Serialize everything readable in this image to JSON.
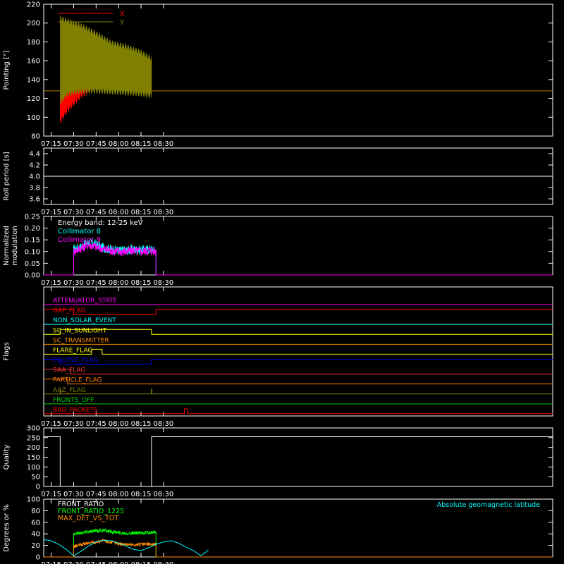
{
  "colors": {
    "frame": "#ffffff",
    "x": "#ff0000",
    "y": "#808000",
    "white": "#ffffff",
    "cyan": "#00ffff",
    "magenta": "#ff00ff",
    "green": "#00ff00",
    "orange": "#ff8c00"
  },
  "time_axis": {
    "range_min": [
      430,
      770
    ],
    "ticks_min": [
      435,
      450,
      465,
      480,
      495,
      510
    ],
    "tick_labels": [
      "07:15",
      "07:30",
      "07:45",
      "08:00",
      "08:15",
      "08:30"
    ]
  },
  "chart_data": [
    {
      "id": "pointing",
      "type": "line",
      "ylabel": "Pointing [\"]",
      "ylim": [
        80,
        220
      ],
      "yticks": [
        80,
        100,
        120,
        140,
        160,
        180,
        200,
        220
      ],
      "legend": [
        "X",
        "Y"
      ],
      "legend_placement": "top-left",
      "series": [
        {
          "name": "X",
          "color_key": "x",
          "baseline": 128,
          "envelope_x": [
            441,
            446,
            455,
            465,
            475,
            485,
            495,
            502
          ],
          "envelope_low": [
            93,
            105,
            120,
            130,
            130,
            128,
            125,
            123
          ],
          "envelope_high": [
            125,
            140,
            150,
            150,
            158,
            163,
            165,
            163
          ]
        },
        {
          "name": "Y",
          "color_key": "y",
          "baseline": 128,
          "envelope_x": [
            441,
            446,
            455,
            465,
            475,
            485,
            495,
            502
          ],
          "envelope_low": [
            113,
            122,
            125,
            125,
            124,
            123,
            122,
            120
          ],
          "envelope_high": [
            208,
            205,
            200,
            192,
            182,
            178,
            172,
            165
          ]
        }
      ],
      "active_range_min": [
        441,
        502
      ]
    },
    {
      "id": "roll",
      "type": "line",
      "ylabel": "Roll period [s]",
      "ylim": [
        3.5,
        4.5
      ],
      "yticks": [
        3.6,
        3.8,
        4.0,
        4.2,
        4.4
      ],
      "ytick_labels": [
        "3.6",
        "3.8",
        "4.0",
        "4.2",
        "4.4"
      ],
      "series": [
        {
          "name": "",
          "color_key": "white",
          "constant": 4.0
        }
      ]
    },
    {
      "id": "modulation",
      "type": "line",
      "ylabel": "Normalized modulation",
      "ylim": [
        0,
        0.25
      ],
      "yticks": [
        0,
        0.05,
        0.1,
        0.15,
        0.2,
        0.25
      ],
      "ytick_labels": [
        "0.00",
        "0.05",
        "0.10",
        "0.15",
        "0.20",
        "0.25"
      ],
      "annotation": "Energy band: 12-25 keV",
      "legend": [
        "Collimator 8",
        "Collimator 9"
      ],
      "series": [
        {
          "name": "Collimator 8",
          "color_key": "cyan",
          "x": [
            450,
            455,
            460,
            465,
            470,
            475,
            480,
            485,
            490,
            495,
            500,
            505
          ],
          "y": [
            0.11,
            0.12,
            0.14,
            0.13,
            0.115,
            0.11,
            0.105,
            0.105,
            0.11,
            0.105,
            0.11,
            0.105
          ]
        },
        {
          "name": "Collimator 9",
          "color_key": "magenta",
          "x": [
            450,
            455,
            460,
            465,
            470,
            475,
            480,
            485,
            490,
            495,
            500,
            505
          ],
          "y": [
            0.1,
            0.115,
            0.13,
            0.12,
            0.11,
            0.105,
            0.1,
            0.1,
            0.105,
            0.1,
            0.105,
            0.1
          ]
        }
      ],
      "active_range_min": [
        450,
        505
      ]
    },
    {
      "id": "flags",
      "type": "line",
      "ylabel": "Flags",
      "flags": [
        {
          "name": "ATTENUATOR_STATE",
          "color": "#ff00ff",
          "steps": [
            [
              430,
              0
            ],
            [
              770,
              0
            ]
          ]
        },
        {
          "name": "GAP_FLAG",
          "color": "#ff0000",
          "steps": [
            [
              430,
              1
            ],
            [
              450,
              0
            ],
            [
              505,
              1
            ],
            [
              770,
              1
            ]
          ]
        },
        {
          "name": "NON_SOLAR_EVENT",
          "color": "#00ffff",
          "steps": [
            [
              430,
              0
            ],
            [
              770,
              0
            ]
          ]
        },
        {
          "name": "SC_IN_SUNLIGHT",
          "color": "#ffff00",
          "steps": [
            [
              430,
              0
            ],
            [
              441,
              1
            ],
            [
              502,
              0
            ],
            [
              770,
              0
            ]
          ]
        },
        {
          "name": "SC_TRANSMITTER",
          "color": "#ff8c00",
          "steps": [
            [
              430,
              0
            ],
            [
              770,
              0
            ]
          ]
        },
        {
          "name": "FLARE_FLAG",
          "color": "#ffff00",
          "steps": [
            [
              430,
              0
            ],
            [
              462,
              1
            ],
            [
              469,
              0
            ],
            [
              770,
              0
            ]
          ]
        },
        {
          "name": "ECLIPSE_FLAG",
          "color": "#0000ff",
          "steps": [
            [
              430,
              1
            ],
            [
              441,
              0
            ],
            [
              502,
              1
            ],
            [
              770,
              1
            ]
          ]
        },
        {
          "name": "SAA_FLAG",
          "color": "#ff3333",
          "steps": [
            [
              430,
              1
            ],
            [
              448,
              0
            ],
            [
              770,
              0
            ]
          ]
        },
        {
          "name": "PARTICLE_FLAG",
          "color": "#ff7700",
          "steps": [
            [
              430,
              1
            ],
            [
              446,
              0
            ],
            [
              770,
              0
            ]
          ]
        },
        {
          "name": "AAZ_FLAG",
          "color": "#808000",
          "steps": [
            [
              430,
              0
            ],
            [
              441,
              1
            ],
            [
              441.3,
              0
            ],
            [
              502,
              1
            ],
            [
              502.3,
              0
            ],
            [
              770,
              0
            ]
          ]
        },
        {
          "name": "FRONTS_OFF",
          "color": "#00cc00",
          "steps": [
            [
              430,
              0
            ],
            [
              770,
              0
            ]
          ]
        },
        {
          "name": "BAD_PACKETS",
          "color": "#ff0000",
          "steps": [
            [
              430,
              0
            ],
            [
              524,
              1
            ],
            [
              526,
              0
            ],
            [
              770,
              0
            ]
          ]
        }
      ]
    },
    {
      "id": "quality",
      "type": "line",
      "ylabel": "Quality",
      "ylim": [
        0,
        300
      ],
      "yticks": [
        0,
        50,
        100,
        150,
        200,
        250,
        300
      ],
      "series": [
        {
          "name": "",
          "color_key": "white",
          "steps": [
            [
              430,
              255
            ],
            [
              441,
              0
            ],
            [
              502,
              255
            ],
            [
              770,
              255
            ]
          ]
        }
      ]
    },
    {
      "id": "ratios",
      "type": "line",
      "ylabel": "Degrees or %",
      "ylim": [
        0,
        100
      ],
      "yticks": [
        0,
        20,
        40,
        60,
        80,
        100
      ],
      "legend": [
        "FRONT_RATIO",
        "FRONT_RATIO_1225",
        "MAX_DET_VS_TOT"
      ],
      "annotation": "Absolute geomagnetic latitude",
      "series": [
        {
          "name": "FRONT_RATIO",
          "color_key": "white",
          "x": [
            450,
            460,
            470,
            480,
            490,
            500,
            505
          ],
          "y": [
            0,
            0,
            0,
            0,
            0,
            0,
            0
          ]
        },
        {
          "name": "FRONT_RATIO_1225",
          "color_key": "green",
          "x": [
            450,
            460,
            470,
            480,
            490,
            500,
            505
          ],
          "y": [
            40,
            44,
            46,
            42,
            41,
            42,
            42
          ]
        },
        {
          "name": "MAX_DET_VS_TOT",
          "color_key": "orange",
          "x": [
            450,
            460,
            470,
            480,
            490,
            500,
            505
          ],
          "y": [
            18,
            24,
            28,
            23,
            21,
            22,
            22
          ]
        },
        {
          "name": "Absolute geomagnetic latitude",
          "color_key": "cyan",
          "x": [
            430,
            435,
            440,
            445,
            450,
            455,
            460,
            465,
            470,
            475,
            480,
            485,
            490,
            495,
            500,
            505,
            510,
            515,
            520,
            525,
            530,
            535,
            540
          ],
          "y": [
            30,
            28,
            22,
            13,
            2,
            10,
            19,
            26,
            29,
            28,
            24,
            19,
            13,
            11,
            16,
            22,
            26,
            28,
            24,
            17,
            11,
            2,
            12
          ]
        }
      ],
      "active_range_min": [
        450,
        505
      ]
    }
  ]
}
